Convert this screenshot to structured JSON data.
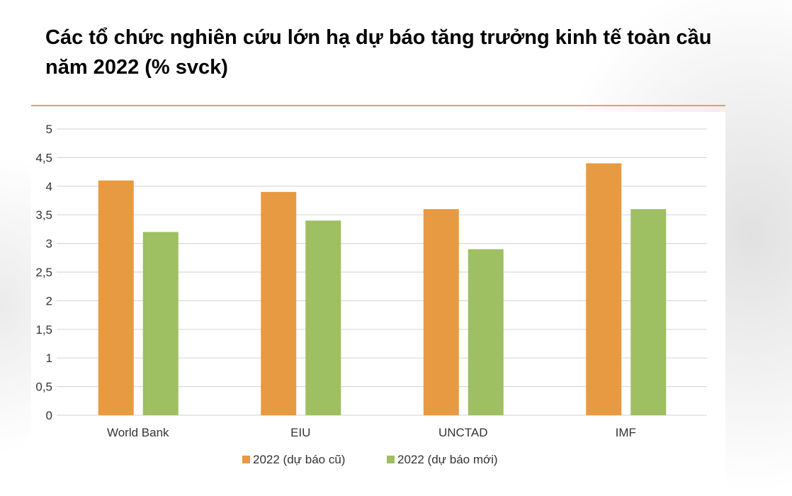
{
  "slide": {
    "title": "Các tổ chức nghiên cứu lớn hạ dự báo tăng trưởng kinh tế toàn cầu năm 2022 (% svck)",
    "accent_color": "#e8a04e"
  },
  "chart_data": {
    "type": "bar",
    "title": "",
    "xlabel": "",
    "ylabel": "",
    "categories": [
      "World Bank",
      "EIU",
      "UNCTAD",
      "IMF"
    ],
    "series": [
      {
        "name": "2022 (dự báo cũ)",
        "values": [
          4.1,
          3.9,
          3.6,
          4.4
        ],
        "color": "#e89a42"
      },
      {
        "name": "2022 (dự báo mới)",
        "values": [
          3.2,
          3.4,
          2.9,
          3.6
        ],
        "color": "#9ebf62"
      }
    ],
    "ylim": [
      0,
      5
    ],
    "yticks": [
      "0",
      "0,5",
      "1",
      "1,5",
      "2",
      "2,5",
      "3",
      "3,5",
      "4",
      "4,5",
      "5"
    ],
    "ytick_values": [
      0,
      0.5,
      1,
      1.5,
      2,
      2.5,
      3,
      3.5,
      4,
      4.5,
      5
    ],
    "grid": true,
    "gridline_color": "#d9d9d9",
    "legend_position": "bottom"
  }
}
